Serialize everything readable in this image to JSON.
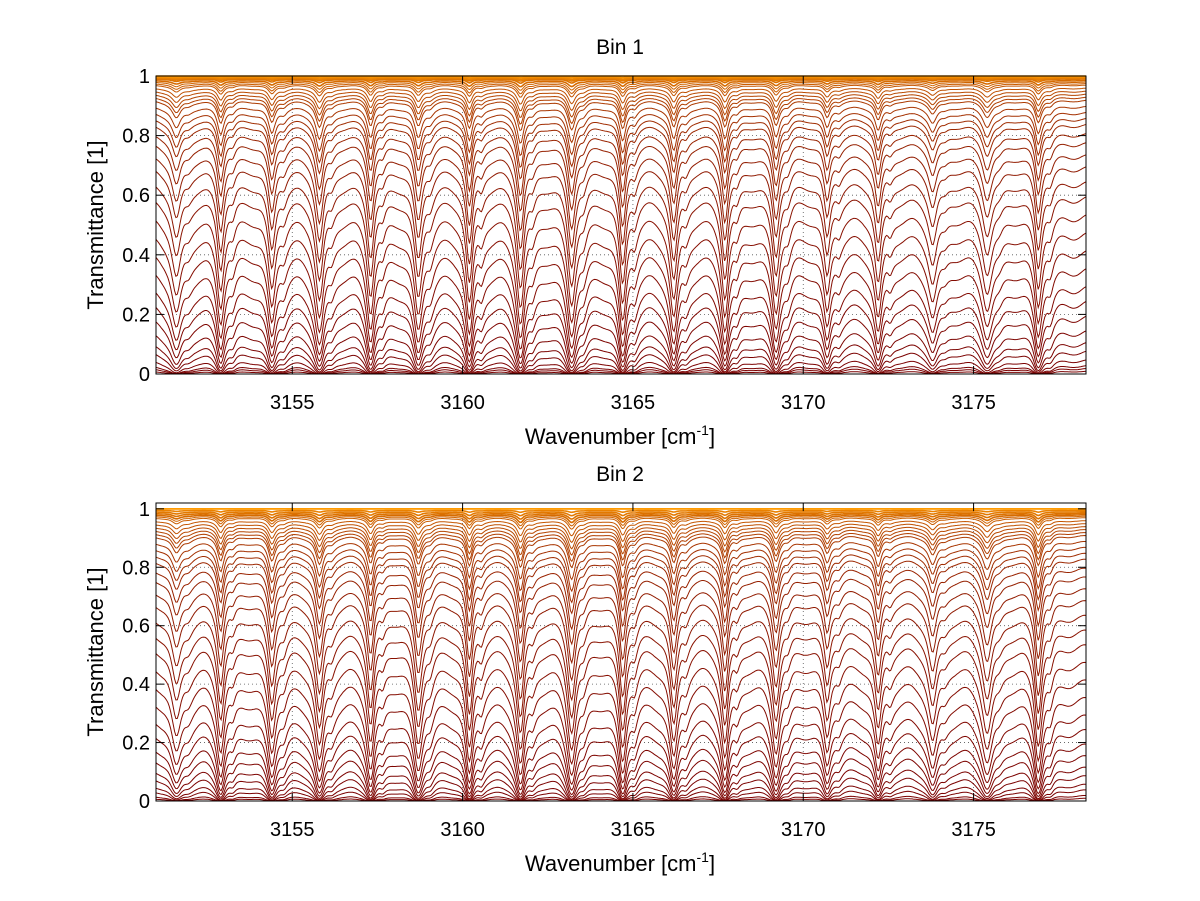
{
  "chart_data": [
    {
      "type": "line",
      "title": "Bin 1",
      "xlabel": "Wavenumber [cm",
      "xlabel_sup": "-1",
      "xlabel_close": "]",
      "ylabel": "Transmittance [1]",
      "xlim": [
        3151,
        3178.3
      ],
      "ylim": [
        0,
        1
      ],
      "xticks": [
        {
          "value": 3155,
          "label": "3155"
        },
        {
          "value": 3160,
          "label": "3160"
        },
        {
          "value": 3165,
          "label": "3165"
        },
        {
          "value": 3170,
          "label": "3170"
        },
        {
          "value": 3175,
          "label": "3175"
        }
      ],
      "yticks": [
        {
          "value": 0,
          "label": "0"
        },
        {
          "value": 0.2,
          "label": "0.2"
        },
        {
          "value": 0.4,
          "label": "0.4"
        },
        {
          "value": 0.6,
          "label": "0.6"
        },
        {
          "value": 0.8,
          "label": "0.8"
        },
        {
          "value": 1,
          "label": "1"
        }
      ],
      "grid": true,
      "grid_style": "dotted",
      "series_count": 40,
      "baseline_levels": [
        0.0,
        0.01,
        0.02,
        0.03,
        0.05,
        0.08,
        0.11,
        0.15,
        0.2,
        0.25,
        0.3,
        0.36,
        0.42,
        0.48,
        0.54,
        0.6,
        0.65,
        0.7,
        0.74,
        0.78,
        0.81,
        0.84,
        0.86,
        0.88,
        0.9,
        0.92,
        0.93,
        0.94,
        0.95,
        0.96,
        0.97,
        0.975,
        0.98,
        0.985,
        0.99,
        0.993,
        0.995,
        0.997,
        0.998,
        1.0
      ],
      "absorption_lines": [
        {
          "x": 3151.6,
          "depth": 0.55,
          "width": 0.16
        },
        {
          "x": 3152.9,
          "depth": 0.7,
          "width": 0.11
        },
        {
          "x": 3154.4,
          "depth": 0.7,
          "width": 0.12
        },
        {
          "x": 3155.8,
          "depth": 0.85,
          "width": 0.13
        },
        {
          "x": 3157.3,
          "depth": 0.78,
          "width": 0.11
        },
        {
          "x": 3158.7,
          "depth": 0.82,
          "width": 0.13
        },
        {
          "x": 3160.2,
          "depth": 0.9,
          "width": 0.11
        },
        {
          "x": 3161.7,
          "depth": 0.95,
          "width": 0.12
        },
        {
          "x": 3163.2,
          "depth": 0.92,
          "width": 0.13
        },
        {
          "x": 3164.7,
          "depth": 0.92,
          "width": 0.11
        },
        {
          "x": 3166.2,
          "depth": 0.85,
          "width": 0.12
        },
        {
          "x": 3167.7,
          "depth": 0.82,
          "width": 0.11
        },
        {
          "x": 3169.2,
          "depth": 0.78,
          "width": 0.12
        },
        {
          "x": 3170.7,
          "depth": 0.55,
          "width": 0.11
        },
        {
          "x": 3172.2,
          "depth": 0.62,
          "width": 0.11
        },
        {
          "x": 3173.8,
          "depth": 0.4,
          "width": 0.14
        },
        {
          "x": 3175.4,
          "depth": 0.5,
          "width": 0.16
        },
        {
          "x": 3176.9,
          "depth": 0.7,
          "width": 0.11
        }
      ],
      "colors": [
        "#7a0000",
        "#ff9a00"
      ]
    },
    {
      "type": "line",
      "title": "Bin 2",
      "xlabel": "Wavenumber [cm",
      "xlabel_sup": "-1",
      "xlabel_close": "]",
      "ylabel": "Transmittance [1]",
      "xlim": [
        3151,
        3178.3
      ],
      "ylim": [
        0,
        1.02
      ],
      "xticks": [
        {
          "value": 3155,
          "label": "3155"
        },
        {
          "value": 3160,
          "label": "3160"
        },
        {
          "value": 3165,
          "label": "3165"
        },
        {
          "value": 3170,
          "label": "3170"
        },
        {
          "value": 3175,
          "label": "3175"
        }
      ],
      "yticks": [
        {
          "value": 0,
          "label": "0"
        },
        {
          "value": 0.2,
          "label": "0.2"
        },
        {
          "value": 0.4,
          "label": "0.4"
        },
        {
          "value": 0.6,
          "label": "0.6"
        },
        {
          "value": 0.8,
          "label": "0.8"
        },
        {
          "value": 1,
          "label": "1"
        }
      ],
      "grid": true,
      "grid_style": "dotted",
      "series_count": 40,
      "baseline_levels": [
        0.0,
        0.01,
        0.02,
        0.04,
        0.06,
        0.09,
        0.12,
        0.16,
        0.2,
        0.25,
        0.3,
        0.36,
        0.42,
        0.48,
        0.54,
        0.59,
        0.64,
        0.69,
        0.73,
        0.77,
        0.8,
        0.83,
        0.85,
        0.87,
        0.89,
        0.91,
        0.92,
        0.93,
        0.94,
        0.95,
        0.96,
        0.97,
        0.975,
        0.98,
        0.985,
        0.99,
        0.995,
        1.0,
        1.005,
        1.01
      ],
      "absorption_lines": [
        {
          "x": 3151.6,
          "depth": 0.5,
          "width": 0.16
        },
        {
          "x": 3152.9,
          "depth": 0.7,
          "width": 0.11
        },
        {
          "x": 3154.4,
          "depth": 0.72,
          "width": 0.12
        },
        {
          "x": 3155.8,
          "depth": 0.85,
          "width": 0.13
        },
        {
          "x": 3157.3,
          "depth": 0.78,
          "width": 0.11
        },
        {
          "x": 3158.7,
          "depth": 0.82,
          "width": 0.13
        },
        {
          "x": 3160.2,
          "depth": 0.9,
          "width": 0.11
        },
        {
          "x": 3161.7,
          "depth": 0.92,
          "width": 0.12
        },
        {
          "x": 3163.2,
          "depth": 0.9,
          "width": 0.13
        },
        {
          "x": 3164.7,
          "depth": 0.88,
          "width": 0.11
        },
        {
          "x": 3166.2,
          "depth": 0.8,
          "width": 0.12
        },
        {
          "x": 3167.7,
          "depth": 0.8,
          "width": 0.11
        },
        {
          "x": 3169.2,
          "depth": 0.72,
          "width": 0.12
        },
        {
          "x": 3170.7,
          "depth": 0.5,
          "width": 0.11
        },
        {
          "x": 3172.2,
          "depth": 0.62,
          "width": 0.11
        },
        {
          "x": 3173.8,
          "depth": 0.55,
          "width": 0.14
        },
        {
          "x": 3175.4,
          "depth": 0.65,
          "width": 0.16
        },
        {
          "x": 3176.9,
          "depth": 0.85,
          "width": 0.11
        }
      ],
      "colors": [
        "#7a0000",
        "#ff9a00"
      ]
    }
  ]
}
